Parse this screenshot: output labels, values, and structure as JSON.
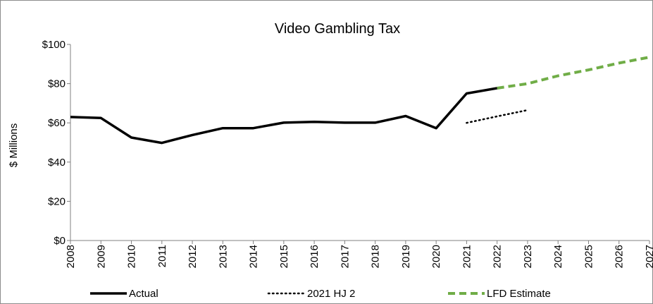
{
  "chart_data": {
    "type": "line",
    "title": "Video Gambling Tax",
    "ylabel": "$ Millions",
    "xlabel": "",
    "x": [
      2008,
      2009,
      2010,
      2011,
      2012,
      2013,
      2014,
      2015,
      2016,
      2017,
      2018,
      2019,
      2020,
      2021,
      2022,
      2023,
      2024,
      2025,
      2026,
      2027
    ],
    "xlim": [
      2008,
      2027
    ],
    "ylim": [
      0,
      100
    ],
    "yticks": [
      0,
      20,
      40,
      60,
      80,
      100
    ],
    "ytick_labels": [
      "$0",
      "$20",
      "$40",
      "$60",
      "$80",
      "$100"
    ],
    "xtick_labels": [
      "2008",
      "2009",
      "2010",
      "2011",
      "2012",
      "2013",
      "2014",
      "2015",
      "2016",
      "2017",
      "2018",
      "2019",
      "2020",
      "2021",
      "2022",
      "2023",
      "2024",
      "2025",
      "2026",
      "2027"
    ],
    "grid": false,
    "legend_position": "bottom",
    "series": [
      {
        "name": "Actual",
        "style": "solid",
        "color": "#000000",
        "points": [
          [
            2008,
            63
          ],
          [
            2009,
            62.5
          ],
          [
            2010,
            52.5
          ],
          [
            2011,
            49.8
          ],
          [
            2012,
            53.8
          ],
          [
            2013,
            57.3
          ],
          [
            2014,
            57.3
          ],
          [
            2015,
            60.1
          ],
          [
            2016,
            60.5
          ],
          [
            2017,
            60.1
          ],
          [
            2018,
            60.1
          ],
          [
            2019,
            63.5
          ],
          [
            2020,
            57.3
          ],
          [
            2021,
            75
          ],
          [
            2022,
            77.7
          ]
        ]
      },
      {
        "name": "2021 HJ 2",
        "style": "dotted",
        "color": "#000000",
        "points": [
          [
            2021,
            60
          ],
          [
            2022,
            63.3
          ],
          [
            2023,
            66.5
          ]
        ]
      },
      {
        "name": "LFD Estimate",
        "style": "dashed",
        "color": "#70ad47",
        "points": [
          [
            2022,
            77.7
          ],
          [
            2023,
            80
          ],
          [
            2024,
            84
          ],
          [
            2025,
            87
          ],
          [
            2026,
            90.5
          ],
          [
            2027,
            93.5
          ]
        ]
      }
    ]
  }
}
